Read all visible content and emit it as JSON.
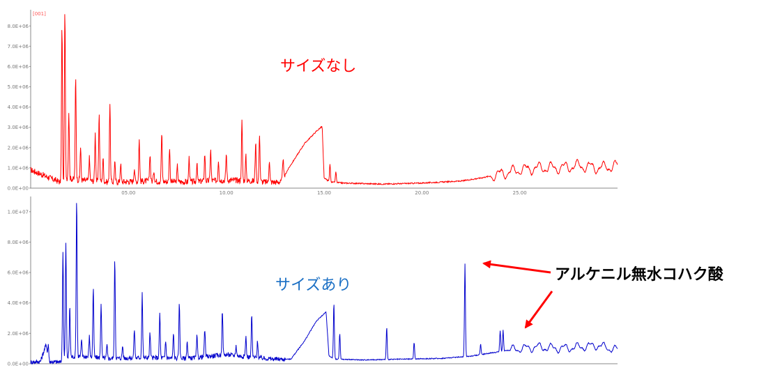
{
  "chart_data": [
    {
      "type": "line",
      "panel_title": "[001]",
      "label": "サイズなし",
      "color": "#ff0000",
      "label_color": "#ff0000",
      "xlim": [
        0,
        30
      ],
      "ylim": [
        0,
        8800000
      ],
      "ytick_labels": [
        "0.0E+00",
        "1.0E+06",
        "2.0E+06",
        "3.0E+06",
        "4.0E+06",
        "5.0E+06",
        "6.0E+06",
        "7.0E+06",
        "8.0E+06"
      ],
      "ytick_values": [
        0,
        1000000,
        2000000,
        3000000,
        4000000,
        5000000,
        6000000,
        7000000,
        8000000
      ],
      "xtick_labels": [
        "05.00",
        "10.00",
        "15.00",
        "20.00",
        "25.00"
      ],
      "xtick_values": [
        5,
        10,
        15,
        20,
        25
      ],
      "baseline": [
        [
          0,
          900000
        ],
        [
          1.5,
          300000
        ],
        [
          1.7,
          200000
        ],
        [
          1.8,
          500000
        ],
        [
          2.5,
          400000
        ],
        [
          4,
          300000
        ],
        [
          6,
          350000
        ],
        [
          8,
          300000
        ],
        [
          10,
          400000
        ],
        [
          11.5,
          350000
        ],
        [
          12,
          300000
        ],
        [
          12.8,
          300000
        ],
        [
          13.2,
          1000000
        ],
        [
          14.0,
          2200000
        ],
        [
          14.6,
          2800000
        ],
        [
          14.9,
          3050000
        ],
        [
          15.0,
          500000
        ],
        [
          15.3,
          300000
        ],
        [
          16,
          250000
        ],
        [
          18,
          200000
        ],
        [
          20,
          250000
        ],
        [
          21,
          300000
        ],
        [
          22,
          350000
        ],
        [
          23,
          500000
        ],
        [
          24,
          700000
        ],
        [
          25,
          900000
        ],
        [
          26,
          1000000
        ],
        [
          27,
          1000000
        ],
        [
          28,
          1100000
        ],
        [
          29,
          1000000
        ],
        [
          30,
          1100000
        ]
      ],
      "peaks": [
        [
          1.6,
          8000000
        ],
        [
          1.75,
          8700000
        ],
        [
          1.95,
          3800000
        ],
        [
          2.3,
          5500000
        ],
        [
          2.55,
          2000000
        ],
        [
          3.0,
          1500000
        ],
        [
          3.3,
          2700000
        ],
        [
          3.5,
          3700000
        ],
        [
          3.7,
          1500000
        ],
        [
          4.05,
          4200000
        ],
        [
          4.3,
          1300000
        ],
        [
          4.6,
          1200000
        ],
        [
          5.3,
          1000000
        ],
        [
          5.55,
          2400000
        ],
        [
          6.1,
          1700000
        ],
        [
          6.3,
          900000
        ],
        [
          6.7,
          2700000
        ],
        [
          7.1,
          2000000
        ],
        [
          7.5,
          1100000
        ],
        [
          8.1,
          1500000
        ],
        [
          8.5,
          1200000
        ],
        [
          8.9,
          1700000
        ],
        [
          9.2,
          1900000
        ],
        [
          9.6,
          1400000
        ],
        [
          10.0,
          1700000
        ],
        [
          10.8,
          3300000
        ],
        [
          11.0,
          1600000
        ],
        [
          11.5,
          2300000
        ],
        [
          11.7,
          2700000
        ],
        [
          12.2,
          1400000
        ],
        [
          12.9,
          1500000
        ],
        [
          13.3,
          900000
        ],
        [
          14.4,
          800000
        ],
        [
          15.3,
          1200000
        ],
        [
          15.6,
          800000
        ]
      ],
      "oscillation_start": 23.5,
      "oscillation_end": 30
    },
    {
      "type": "line",
      "panel_title": "",
      "label": "サイズあり",
      "color": "#0000cc",
      "label_color": "#1a6fc4",
      "xlim": [
        0,
        30
      ],
      "ylim": [
        0,
        11000000
      ],
      "ytick_labels": [
        "0.0E+00",
        "2.0E+06",
        "4.0E+06",
        "6.0E+06",
        "8.0E+06",
        "1.0E+07"
      ],
      "ytick_values": [
        0,
        2000000,
        4000000,
        6000000,
        8000000,
        10000000
      ],
      "baseline": [
        [
          0,
          100000
        ],
        [
          0.5,
          150000
        ],
        [
          0.8,
          1300000
        ],
        [
          0.9,
          150000
        ],
        [
          1.5,
          100000
        ],
        [
          1.7,
          400000
        ],
        [
          2.5,
          500000
        ],
        [
          4,
          350000
        ],
        [
          6,
          400000
        ],
        [
          8,
          350000
        ],
        [
          10,
          600000
        ],
        [
          11.5,
          400000
        ],
        [
          12.5,
          300000
        ],
        [
          13.3,
          300000
        ],
        [
          14.0,
          1500000
        ],
        [
          14.6,
          2800000
        ],
        [
          15.1,
          3400000
        ],
        [
          15.25,
          500000
        ],
        [
          15.6,
          300000
        ],
        [
          17,
          250000
        ],
        [
          19,
          300000
        ],
        [
          21,
          350000
        ],
        [
          22.5,
          500000
        ],
        [
          24,
          800000
        ],
        [
          25,
          1000000
        ],
        [
          26,
          1100000
        ],
        [
          27,
          1000000
        ],
        [
          28,
          1100000
        ],
        [
          29,
          1200000
        ],
        [
          30,
          900000
        ]
      ],
      "peaks": [
        [
          0.9,
          1300000
        ],
        [
          1.65,
          7500000
        ],
        [
          1.8,
          8000000
        ],
        [
          2.0,
          3800000
        ],
        [
          2.35,
          11000000
        ],
        [
          2.6,
          1500000
        ],
        [
          3.0,
          1800000
        ],
        [
          3.2,
          5000000
        ],
        [
          3.6,
          4000000
        ],
        [
          3.9,
          1200000
        ],
        [
          4.3,
          7000000
        ],
        [
          4.7,
          1200000
        ],
        [
          5.3,
          2300000
        ],
        [
          5.7,
          4700000
        ],
        [
          6.1,
          2000000
        ],
        [
          6.6,
          3300000
        ],
        [
          6.9,
          1500000
        ],
        [
          7.3,
          2000000
        ],
        [
          7.6,
          4000000
        ],
        [
          8.0,
          1500000
        ],
        [
          8.5,
          1800000
        ],
        [
          8.9,
          2300000
        ],
        [
          9.8,
          3500000
        ],
        [
          10.5,
          1200000
        ],
        [
          11.0,
          1800000
        ],
        [
          11.3,
          3200000
        ],
        [
          11.6,
          1500000
        ],
        [
          15.5,
          4000000
        ],
        [
          15.8,
          2000000
        ],
        [
          18.2,
          2400000
        ],
        [
          19.6,
          1400000
        ],
        [
          22.2,
          6600000
        ],
        [
          23.0,
          1300000
        ],
        [
          24.0,
          2200000
        ],
        [
          24.15,
          2200000
        ]
      ],
      "oscillation_start": 24.5,
      "oscillation_end": 30
    }
  ],
  "annotation": {
    "callout_text": "アルケニル無水コハク酸",
    "arrow_color": "#ff0000"
  }
}
